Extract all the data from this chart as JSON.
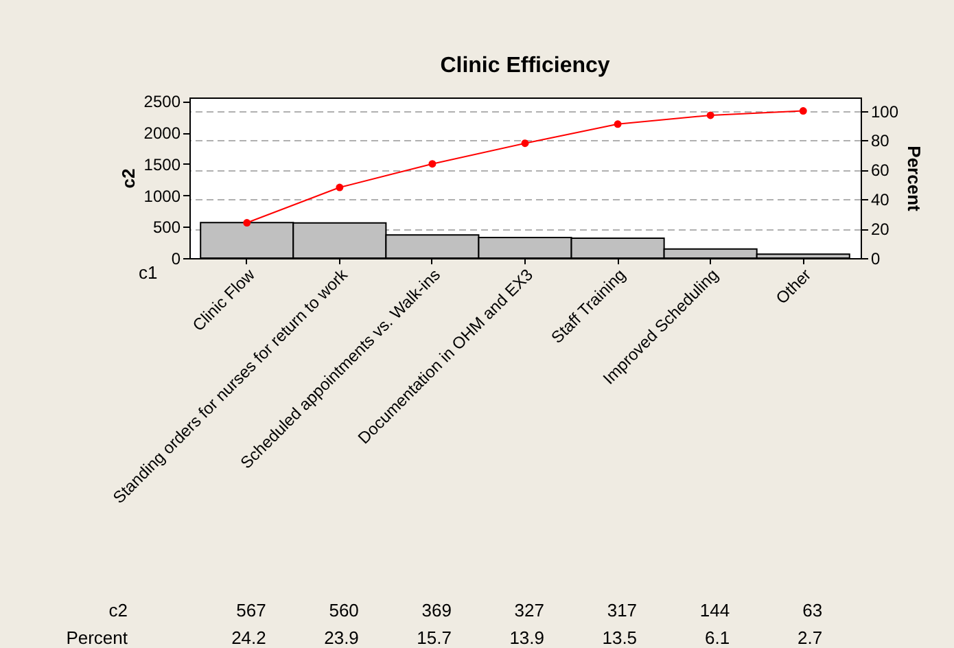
{
  "chart_data": {
    "type": "bar",
    "title": "Clinic Efficiency",
    "xlabel": "c1",
    "ylabel": "c2",
    "y2label": "Percent",
    "categories": [
      "Clinic Flow",
      "Standing orders for nurses for return to work",
      "Scheduled appointments vs. Walk-ins",
      "Documentation in OHM and EX3",
      "Staff Training",
      "Improved Scheduling",
      "Other"
    ],
    "series": [
      {
        "name": "c2",
        "color": "#c0c0c0",
        "values": [
          567,
          560,
          369,
          327,
          317,
          144,
          63
        ],
        "value_labels": [
          "567",
          "560",
          "369",
          "327",
          "317",
          "144",
          "63"
        ]
      },
      {
        "type": "line",
        "axis": "y2",
        "color": "#ff0000",
        "marker": "circle",
        "line_style": "solid",
        "values": [
          24,
          48,
          64,
          78,
          91,
          97,
          100
        ]
      }
    ],
    "annotations": [
      "Percent",
      "24.2",
      "23.9",
      "15.7",
      "13.9",
      "13.5",
      "6.1",
      "2.7"
    ],
    "ylim": [
      0,
      2560
    ],
    "yticks": [
      0,
      500,
      1000,
      1500,
      2000,
      2500
    ],
    "y2lim": [
      0,
      109.1
    ],
    "y2ticks": [
      0,
      20,
      40,
      60,
      80,
      100
    ],
    "grid": "y"
  }
}
